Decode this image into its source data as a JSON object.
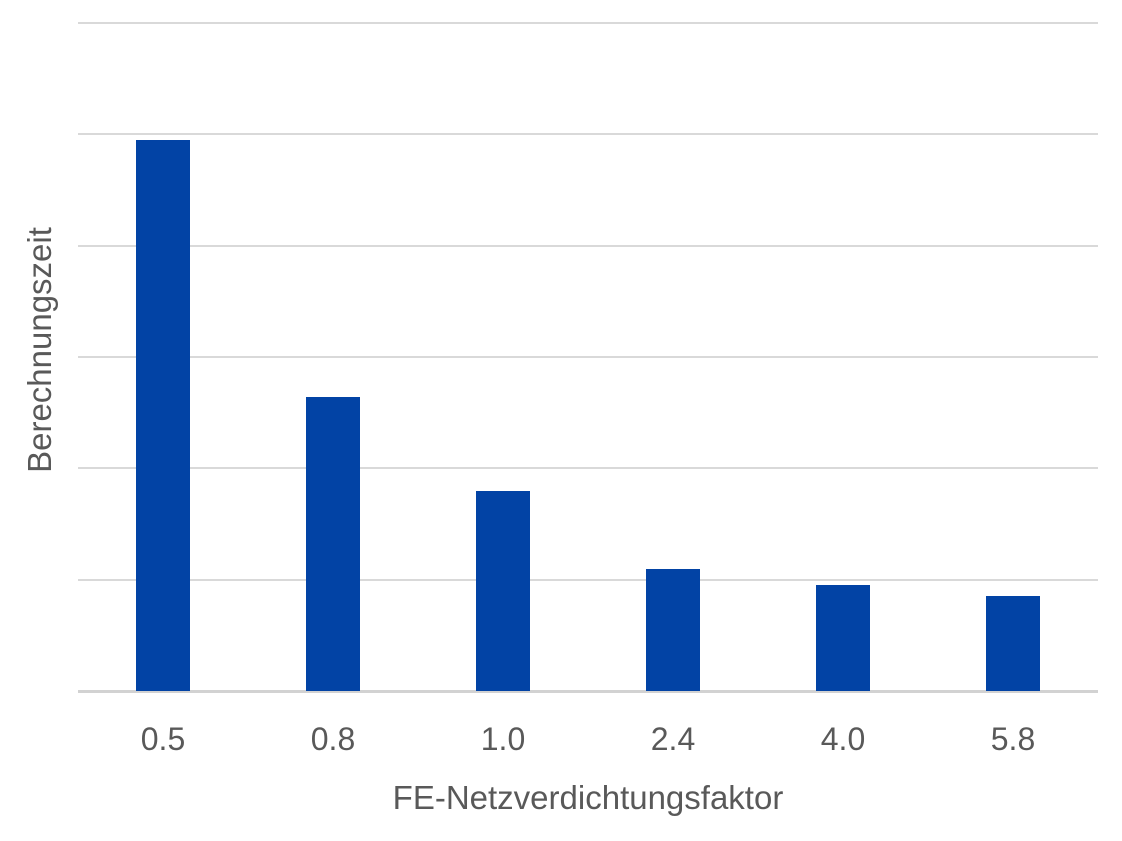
{
  "chart_data": {
    "type": "bar",
    "categories": [
      "0.5",
      "0.8",
      "1.0",
      "2.4",
      "4.0",
      "5.8"
    ],
    "values": [
      4.95,
      2.64,
      1.8,
      1.1,
      0.95,
      0.85
    ],
    "title": "",
    "xlabel": "FE-Netzverdichtungsfaktor",
    "ylabel": "Berechnungszeit",
    "ylim": [
      0,
      6
    ],
    "y_tick_step": 1,
    "y_tick_labels_visible": false,
    "gridlines_visible": true,
    "legend_position": "none",
    "colors": {
      "bar": "#0243a5",
      "gridline": "#d9d9d9",
      "axis_line": "#d2d2d2",
      "text": "#595959",
      "background": "#ffffff"
    }
  }
}
